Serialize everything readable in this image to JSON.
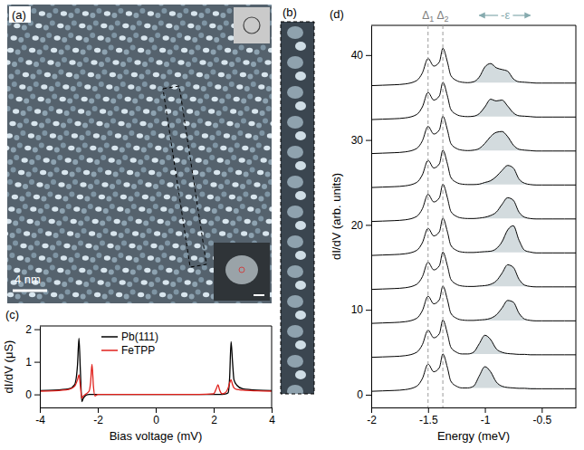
{
  "chart_data": [
    {
      "type": "image",
      "title": "(a)",
      "scale_bar": "4 nm"
    },
    {
      "type": "image",
      "title": "(b)"
    },
    {
      "type": "line",
      "title": "(c)",
      "xlabel": "Bias voltage (mV)",
      "ylabel": "dI/dV (μS)",
      "x": [
        -4,
        -3.5,
        -3,
        -2.8,
        -2.7,
        -2.65,
        -2.6,
        -2.55,
        -2.5,
        -2.4,
        -2.3,
        -2.25,
        -2.2,
        -2.15,
        -2.1,
        -2,
        -1.5,
        -1,
        0,
        1,
        1.5,
        2,
        2.1,
        2.15,
        2.2,
        2.25,
        2.3,
        2.4,
        2.5,
        2.55,
        2.6,
        2.65,
        2.7,
        2.8,
        3,
        3.5,
        4
      ],
      "series": [
        {
          "name": "Pb(111)",
          "color": "#000000",
          "values": [
            0.12,
            0.13,
            0.17,
            0.3,
            0.9,
            1.72,
            0.7,
            -0.22,
            -0.12,
            -0.02,
            0,
            0,
            0,
            0,
            0,
            0,
            0,
            0,
            0,
            0,
            0,
            0,
            0,
            0,
            0,
            0,
            0,
            0.01,
            0.05,
            0.5,
            1.62,
            1.0,
            0.45,
            0.28,
            0.17,
            0.13,
            0.12
          ]
        },
        {
          "name": "FeTPP",
          "color": "#e0201b",
          "values": [
            0.1,
            0.11,
            0.15,
            0.25,
            0.45,
            0.6,
            0.25,
            -0.12,
            -0.05,
            0.02,
            0.1,
            0.35,
            0.92,
            0.25,
            -0.05,
            0,
            0,
            0,
            0,
            0,
            0,
            0.02,
            0.2,
            0.3,
            0.15,
            0.05,
            0.02,
            0.05,
            0.2,
            0.35,
            0.45,
            0.3,
            0.2,
            0.15,
            0.13,
            0.11,
            0.1
          ]
        }
      ],
      "xlim": [
        -4,
        4
      ],
      "ylim": [
        -0.4,
        2.1
      ],
      "xticks": [
        -4,
        -2,
        0,
        2,
        4
      ],
      "yticks": [
        0,
        1,
        2
      ],
      "legend": "upper left",
      "grid": false
    },
    {
      "type": "line",
      "title": "(d)",
      "xlabel": "Energy (meV)",
      "ylabel": "dI/dV (arb. units)",
      "color": "#000000",
      "x": [
        -2,
        -1.9,
        -1.8,
        -1.7,
        -1.6,
        -1.55,
        -1.5,
        -1.45,
        -1.4,
        -1.37,
        -1.33,
        -1.3,
        -1.25,
        -1.2,
        -1.15,
        -1.1,
        -1.05,
        -1,
        -0.95,
        -0.9,
        -0.85,
        -0.8,
        -0.75,
        -0.7,
        -0.65,
        -0.6,
        -0.55,
        -0.5,
        -0.4,
        -0.3,
        -0.2
      ],
      "series": [
        {
          "values": [
            0.4,
            0.45,
            0.5,
            0.6,
            1.0,
            1.9,
            3.6,
            2.7,
            3.2,
            4.8,
            3.2,
            1.6,
            1.0,
            0.8,
            0.8,
            1.0,
            2.2,
            3.3,
            2.7,
            1.5,
            1.0,
            0.85,
            0.8,
            0.75,
            0.75,
            0.7,
            0.7,
            0.7,
            0.7,
            0.7,
            0.7
          ]
        },
        {
          "values": [
            4.4,
            4.45,
            4.5,
            4.6,
            5.0,
            5.9,
            7.6,
            6.7,
            7.2,
            8.8,
            7.2,
            5.6,
            5.0,
            4.8,
            4.8,
            5.0,
            6.0,
            7.0,
            6.5,
            5.4,
            5.0,
            4.85,
            4.8,
            4.75,
            4.75,
            4.7,
            4.7,
            4.7,
            4.7,
            4.7,
            4.7
          ]
        },
        {
          "values": [
            8.4,
            8.45,
            8.5,
            8.6,
            9.0,
            9.9,
            11.6,
            10.7,
            11.2,
            12.8,
            11.2,
            9.6,
            9.0,
            8.8,
            8.75,
            8.75,
            8.8,
            8.85,
            9.0,
            9.4,
            10.2,
            11.1,
            10.9,
            9.6,
            8.9,
            8.75,
            8.7,
            8.7,
            8.7,
            8.7,
            8.7
          ]
        },
        {
          "values": [
            12.4,
            12.45,
            12.5,
            12.6,
            13.0,
            13.9,
            15.6,
            14.7,
            15.2,
            16.8,
            15.2,
            13.6,
            13.0,
            12.8,
            12.75,
            12.75,
            12.8,
            12.85,
            13.0,
            13.4,
            14.3,
            15.3,
            15.0,
            13.6,
            12.9,
            12.75,
            12.7,
            12.7,
            12.7,
            12.7,
            12.7
          ]
        },
        {
          "values": [
            16.4,
            16.45,
            16.5,
            16.6,
            17.0,
            17.9,
            19.6,
            18.7,
            19.2,
            20.8,
            19.2,
            17.6,
            17.0,
            16.8,
            16.75,
            16.75,
            16.8,
            16.85,
            16.9,
            17.2,
            18.0,
            19.4,
            19.9,
            18.2,
            17.0,
            16.8,
            16.7,
            16.7,
            16.7,
            16.7,
            16.7
          ]
        },
        {
          "values": [
            20.4,
            20.45,
            20.5,
            20.6,
            21.0,
            21.9,
            23.6,
            22.7,
            23.2,
            24.8,
            23.2,
            21.6,
            21.0,
            20.8,
            20.75,
            20.75,
            20.8,
            20.9,
            21.1,
            21.5,
            22.4,
            23.2,
            22.9,
            21.5,
            20.9,
            20.75,
            20.7,
            20.7,
            20.7,
            20.7,
            20.7
          ]
        },
        {
          "values": [
            24.4,
            24.45,
            24.5,
            24.6,
            25.0,
            25.9,
            27.6,
            26.7,
            27.2,
            28.8,
            27.2,
            25.6,
            25.0,
            24.8,
            24.75,
            24.75,
            24.8,
            25.0,
            25.2,
            25.7,
            26.4,
            27.0,
            26.7,
            25.4,
            24.9,
            24.75,
            24.7,
            24.7,
            24.7,
            24.7,
            24.7
          ]
        },
        {
          "values": [
            28.4,
            28.45,
            28.5,
            28.6,
            29.0,
            29.9,
            31.6,
            30.7,
            31.2,
            32.8,
            31.2,
            29.6,
            29.0,
            28.8,
            28.75,
            28.8,
            29.0,
            29.6,
            30.4,
            30.9,
            31.0,
            30.4,
            29.4,
            28.9,
            28.8,
            28.75,
            28.7,
            28.7,
            28.7,
            28.7,
            28.7
          ]
        },
        {
          "values": [
            32.4,
            32.45,
            32.5,
            32.6,
            33.0,
            33.9,
            35.6,
            34.7,
            35.2,
            36.8,
            35.2,
            33.6,
            33.0,
            32.8,
            32.75,
            32.8,
            33.1,
            33.9,
            34.8,
            34.6,
            34.7,
            34.0,
            33.2,
            32.85,
            32.8,
            32.75,
            32.7,
            32.7,
            32.7,
            32.7,
            32.7
          ]
        },
        {
          "values": [
            36.4,
            36.45,
            36.5,
            36.6,
            37.0,
            37.9,
            39.6,
            38.7,
            39.2,
            40.8,
            39.2,
            37.6,
            37.0,
            36.8,
            36.75,
            36.85,
            37.4,
            38.6,
            39.0,
            38.5,
            38.3,
            38.1,
            37.2,
            36.85,
            36.8,
            36.75,
            36.7,
            36.7,
            36.7,
            36.7,
            36.7
          ]
        }
      ],
      "xlim": [
        -2,
        -0.2
      ],
      "ylim": [
        -1.5,
        43.5
      ],
      "xticks": [
        -2,
        -1.5,
        -1,
        -0.5
      ],
      "yticks": [
        0,
        10,
        20,
        30,
        40
      ],
      "shaded_x": [
        -1.15,
        -0.55
      ],
      "annotations": [
        {
          "text": "Δ1",
          "x": -1.5
        },
        {
          "text": "Δ2",
          "x": -1.37
        },
        {
          "text": "-ε",
          "x": -0.82,
          "arrow_x": [
            -1.05,
            -0.6
          ]
        }
      ],
      "grid": false
    }
  ]
}
